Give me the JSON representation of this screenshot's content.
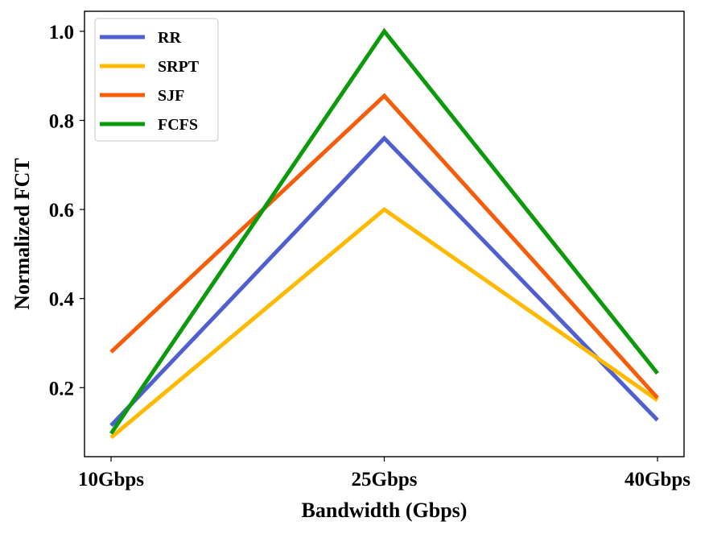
{
  "chart_data": {
    "type": "line",
    "title": "",
    "xlabel": "Bandwidth (Gbps)",
    "ylabel": "Normalized FCT",
    "categories": [
      "10Gbps",
      "25Gbps",
      "40Gbps"
    ],
    "ylim": [
      0.045,
      1.045
    ],
    "yticks": [
      0.2,
      0.4,
      0.6,
      0.8,
      1.0
    ],
    "ytick_labels": [
      "0.2",
      "0.4",
      "0.6",
      "0.8",
      "1.0"
    ],
    "grid": false,
    "legend_position": "top-left",
    "series": [
      {
        "name": "RR",
        "color": "#4f5fd0",
        "values": [
          0.115,
          0.76,
          0.127
        ]
      },
      {
        "name": "SRPT",
        "color": "#ffb900",
        "values": [
          0.088,
          0.6,
          0.172
        ]
      },
      {
        "name": "SJF",
        "color": "#f55d0a",
        "values": [
          0.28,
          0.855,
          0.177
        ]
      },
      {
        "name": "FCFS",
        "color": "#0a9a0a",
        "values": [
          0.097,
          1.0,
          0.232
        ]
      }
    ]
  }
}
